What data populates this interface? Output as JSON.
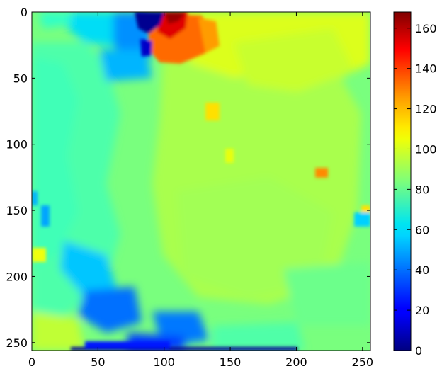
{
  "chart_data": {
    "type": "heatmap",
    "title": "",
    "xlabel": "",
    "ylabel": "",
    "colormap": "jet",
    "grid": false,
    "xlim": [
      0,
      256
    ],
    "ylim": [
      256,
      0
    ],
    "x_ticks": [
      "0",
      "50",
      "100",
      "150",
      "200",
      "250"
    ],
    "y_ticks": [
      "0",
      "50",
      "100",
      "150",
      "200",
      "250"
    ],
    "colorbar": {
      "range": [
        0,
        168
      ],
      "ticks": [
        "0",
        "20",
        "40",
        "60",
        "80",
        "100",
        "120",
        "140",
        "160"
      ]
    },
    "regions": [
      {
        "region": "background (most of image)",
        "approx_value": 80
      },
      {
        "region": "central-right plateau",
        "approx_value": 95
      },
      {
        "region": "top-right band",
        "approx_value": 108
      },
      {
        "region": "top-center peak near x=100-140, y=0-40",
        "approx_value": 155
      },
      {
        "region": "top-center orange area",
        "approx_value": 135
      },
      {
        "region": "top-left cyan block near x=30-80, y=0-30",
        "approx_value": 55
      },
      {
        "region": "blue patch near x=70-90, y=0-35",
        "approx_value": 40
      },
      {
        "region": "dark blue corner near x=85-100, y=0-10",
        "approx_value": 10
      },
      {
        "region": "left cyan band x=0-50",
        "approx_value": 70
      },
      {
        "region": "bottom-left blue blob near x=45-80, y=210-240",
        "approx_value": 40
      },
      {
        "region": "bottom-center blue patch near x=90-140, y=225-255",
        "approx_value": 40
      },
      {
        "region": "bottom dark blue edge near x=40-180, y=252-256",
        "approx_value": 5
      },
      {
        "region": "small orange spot near x=220, y=122",
        "approx_value": 125
      }
    ]
  }
}
